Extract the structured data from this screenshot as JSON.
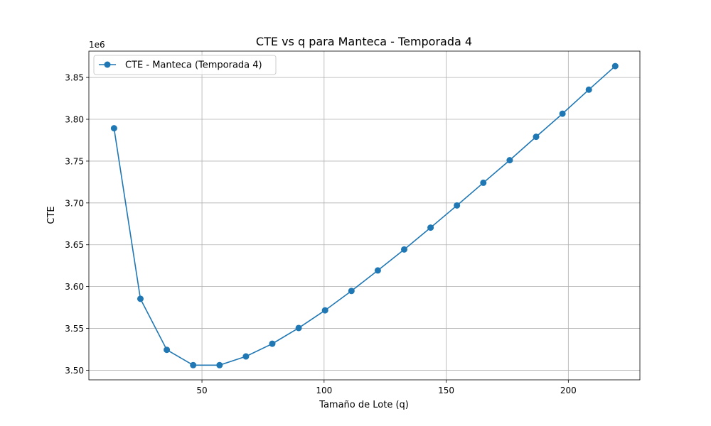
{
  "chart_data": {
    "type": "line",
    "title": "CTE vs q para Manteca - Temporada 4",
    "xlabel": "Tamaño de Lote (q)",
    "ylabel": "CTE",
    "y_offset_label": "1e6",
    "xlim": [
      3.7,
      229.3
    ],
    "ylim": [
      3.4885,
      3.8815
    ],
    "x_ticks": [
      50,
      100,
      150,
      200
    ],
    "x_tick_labels": [
      "50",
      "100",
      "150",
      "200"
    ],
    "y_ticks": [
      3.5,
      3.55,
      3.6,
      3.65,
      3.7,
      3.75,
      3.8,
      3.85
    ],
    "y_tick_labels": [
      "3.50",
      "3.55",
      "3.60",
      "3.65",
      "3.70",
      "3.75",
      "3.80",
      "3.85"
    ],
    "grid": true,
    "legend_position": "top-left",
    "series": [
      {
        "name": "CTE - Manteca (Temporada 4)",
        "color": "#1f77b4",
        "marker": "circle",
        "x": [
          14,
          24.8,
          35.6,
          46.4,
          57.2,
          68,
          78.8,
          89.6,
          100.4,
          111.2,
          122,
          132.8,
          143.6,
          154.4,
          165.2,
          176,
          186.8,
          197.6,
          208.4,
          219.2
        ],
        "y": [
          3.7893,
          3.5854,
          3.5244,
          3.5061,
          3.5061,
          3.5165,
          3.5317,
          3.5505,
          3.5716,
          3.5948,
          3.6193,
          3.6444,
          3.6705,
          3.697,
          3.7241,
          3.7511,
          3.7791,
          3.8067,
          3.8354,
          3.8636
        ]
      }
    ]
  }
}
